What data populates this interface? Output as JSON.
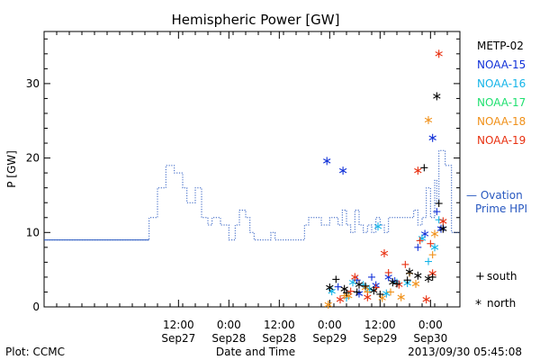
{
  "chart_data": {
    "type": "scatter",
    "title": "Hemispheric Power [GW]",
    "ylabel": "P [GW]",
    "xlabel": "Date and Time",
    "ylim": [
      0,
      37
    ],
    "yticks": [
      0,
      10,
      20,
      30
    ],
    "xlim": [
      "2013-09-26 04:00",
      "2013-09-30 07:00"
    ],
    "xticks": [
      {
        "t": "2013-09-27 12:00",
        "l1": "12:00",
        "l2": "Sep27"
      },
      {
        "t": "2013-09-28 00:00",
        "l1": "0:00",
        "l2": "Sep28"
      },
      {
        "t": "2013-09-28 12:00",
        "l1": "12:00",
        "l2": "Sep28"
      },
      {
        "t": "2013-09-29 00:00",
        "l1": "0:00",
        "l2": "Sep29"
      },
      {
        "t": "2013-09-29 12:00",
        "l1": "12:00",
        "l2": "Sep29"
      },
      {
        "t": "2013-09-30 00:00",
        "l1": "0:00",
        "l2": "Sep30"
      }
    ],
    "grid": false,
    "legend_position": "right",
    "satellites": [
      {
        "name": "METP-02",
        "color": "#000000"
      },
      {
        "name": "NOAA-15",
        "color": "#1030d8"
      },
      {
        "name": "NOAA-16",
        "color": "#14b4e8"
      },
      {
        "name": "NOAA-17",
        "color": "#20e070"
      },
      {
        "name": "NOAA-18",
        "color": "#f09018"
      },
      {
        "name": "NOAA-19",
        "color": "#e83010"
      }
    ],
    "ovation": {
      "name_line1": "— Ovation",
      "name_line2": "Prime HPI",
      "color": "#2858c0",
      "points": [
        [
          "2013-09-26 04:00",
          9
        ],
        [
          "2013-09-27 05:00",
          12
        ],
        [
          "2013-09-27 07:00",
          16
        ],
        [
          "2013-09-27 09:00",
          19
        ],
        [
          "2013-09-27 11:00",
          18
        ],
        [
          "2013-09-27 13:00",
          16
        ],
        [
          "2013-09-27 14:00",
          14
        ],
        [
          "2013-09-27 16:00",
          16
        ],
        [
          "2013-09-27 17:30",
          12
        ],
        [
          "2013-09-27 19:00",
          11
        ],
        [
          "2013-09-27 20:00",
          12
        ],
        [
          "2013-09-27 22:00",
          11
        ],
        [
          "2013-09-28 00:00",
          9
        ],
        [
          "2013-09-28 01:30",
          11
        ],
        [
          "2013-09-28 02:30",
          13
        ],
        [
          "2013-09-28 04:00",
          12
        ],
        [
          "2013-09-28 05:00",
          10
        ],
        [
          "2013-09-28 06:00",
          9
        ],
        [
          "2013-09-28 10:00",
          10
        ],
        [
          "2013-09-28 11:00",
          9
        ],
        [
          "2013-09-28 18:00",
          11
        ],
        [
          "2013-09-28 19:00",
          12
        ],
        [
          "2013-09-28 22:00",
          11
        ],
        [
          "2013-09-29 00:00",
          12
        ],
        [
          "2013-09-29 02:00",
          11
        ],
        [
          "2013-09-29 03:00",
          13
        ],
        [
          "2013-09-29 04:00",
          11
        ],
        [
          "2013-09-29 05:00",
          10
        ],
        [
          "2013-09-29 06:00",
          13
        ],
        [
          "2013-09-29 07:00",
          11
        ],
        [
          "2013-09-29 08:00",
          10
        ],
        [
          "2013-09-29 09:00",
          11
        ],
        [
          "2013-09-29 10:00",
          10
        ],
        [
          "2013-09-29 11:00",
          12
        ],
        [
          "2013-09-29 12:00",
          11
        ],
        [
          "2013-09-29 13:00",
          10
        ],
        [
          "2013-09-29 14:00",
          12
        ],
        [
          "2013-09-29 20:00",
          13
        ],
        [
          "2013-09-29 21:00",
          11
        ],
        [
          "2013-09-29 22:00",
          12
        ],
        [
          "2013-09-29 23:00",
          16
        ],
        [
          "2013-09-30 00:00",
          12
        ],
        [
          "2013-09-30 01:00",
          17
        ],
        [
          "2013-09-30 01:30",
          14
        ],
        [
          "2013-09-30 02:00",
          21
        ],
        [
          "2013-09-30 03:30",
          19
        ],
        [
          "2013-09-30 05:00",
          10
        ]
      ]
    },
    "series": [
      {
        "name": "NOAA-15",
        "north": [
          [
            "2013-09-28 23:20",
            19.6
          ],
          [
            "2013-09-29 03:10",
            18.3
          ],
          [
            "2013-09-30 00:30",
            22.7
          ],
          [
            "2013-09-29 22:40",
            9.8
          ],
          [
            "2013-09-29 14:00",
            4.0
          ],
          [
            "2013-09-29 07:00",
            1.8
          ],
          [
            "2013-09-29 11:00",
            2.9
          ],
          [
            "2013-09-30 02:30",
            10.5
          ]
        ],
        "south": [
          [
            "2013-09-29 02:00",
            2.7
          ],
          [
            "2013-09-29 06:30",
            3.6
          ],
          [
            "2013-09-29 10:00",
            4.0
          ],
          [
            "2013-09-29 15:30",
            3.5
          ],
          [
            "2013-09-29 21:00",
            8.0
          ],
          [
            "2013-09-30 01:30",
            12.8
          ]
        ]
      },
      {
        "name": "NOAA-16",
        "north": [
          [
            "2013-09-29 00:30",
            2.1
          ],
          [
            "2013-09-29 05:30",
            3.3
          ],
          [
            "2013-09-29 09:30",
            2.4
          ],
          [
            "2013-09-29 13:30",
            1.8
          ],
          [
            "2013-09-29 18:30",
            3.2
          ],
          [
            "2013-09-29 22:00",
            9.2
          ],
          [
            "2013-09-30 01:00",
            8.0
          ],
          [
            "2013-09-29 11:30",
            10.8
          ]
        ],
        "south": [
          [
            "2013-09-29 04:00",
            1.2
          ],
          [
            "2013-09-29 08:00",
            3.0
          ],
          [
            "2013-09-29 16:00",
            3.3
          ],
          [
            "2013-09-29 23:30",
            6.1
          ],
          [
            "2013-09-30 02:00",
            11.7
          ]
        ]
      },
      {
        "name": "NOAA-18",
        "north": [
          [
            "2013-09-28 23:40",
            0.3
          ],
          [
            "2013-09-29 04:30",
            1.5
          ],
          [
            "2013-09-29 08:30",
            2.6
          ],
          [
            "2013-09-29 12:30",
            1.2
          ],
          [
            "2013-09-29 17:00",
            1.3
          ],
          [
            "2013-09-29 23:30",
            25.1
          ],
          [
            "2013-09-30 01:00",
            9.8
          ],
          [
            "2013-09-29 20:30",
            3.1
          ]
        ],
        "south": [
          [
            "2013-09-29 03:30",
            1.5
          ],
          [
            "2013-09-29 09:00",
            2.0
          ],
          [
            "2013-09-29 14:30",
            2.0
          ],
          [
            "2013-09-29 19:00",
            4.5
          ],
          [
            "2013-09-30 00:30",
            7.0
          ]
        ]
      },
      {
        "name": "NOAA-19",
        "north": [
          [
            "2013-09-29 02:30",
            1.0
          ],
          [
            "2013-09-29 06:00",
            4.0
          ],
          [
            "2013-09-29 09:00",
            1.3
          ],
          [
            "2013-09-29 13:00",
            7.2
          ],
          [
            "2013-09-29 16:30",
            3.0
          ],
          [
            "2013-09-29 21:00",
            18.3
          ],
          [
            "2013-09-30 02:00",
            34.0
          ],
          [
            "2013-09-30 00:30",
            4.5
          ],
          [
            "2013-09-29 23:00",
            1.0
          ],
          [
            "2013-09-30 03:00",
            11.5
          ]
        ],
        "south": [
          [
            "2013-09-29 05:00",
            2.1
          ],
          [
            "2013-09-29 11:00",
            2.6
          ],
          [
            "2013-09-29 14:00",
            4.6
          ],
          [
            "2013-09-29 18:00",
            5.7
          ],
          [
            "2013-09-29 21:30",
            8.9
          ],
          [
            "2013-09-30 00:00",
            8.5
          ]
        ]
      },
      {
        "name": "METP-02",
        "north": [
          [
            "2013-09-29 00:00",
            2.6
          ],
          [
            "2013-09-29 03:30",
            2.4
          ],
          [
            "2013-09-29 07:00",
            3.0
          ],
          [
            "2013-09-29 10:30",
            2.2
          ],
          [
            "2013-09-29 15:00",
            3.3
          ],
          [
            "2013-09-29 19:00",
            4.7
          ],
          [
            "2013-09-29 23:30",
            3.8
          ],
          [
            "2013-09-30 01:30",
            28.3
          ],
          [
            "2013-09-30 03:00",
            10.5
          ],
          [
            "2013-09-29 21:00",
            4.2
          ]
        ],
        "south": [
          [
            "2013-09-29 01:30",
            3.7
          ],
          [
            "2013-09-29 04:00",
            1.9
          ],
          [
            "2013-09-29 06:30",
            2.0
          ],
          [
            "2013-09-29 08:30",
            2.8
          ],
          [
            "2013-09-29 12:00",
            1.7
          ],
          [
            "2013-09-29 16:00",
            3.1
          ],
          [
            "2013-09-29 18:30",
            3.6
          ],
          [
            "2013-09-29 22:30",
            18.7
          ],
          [
            "2013-09-30 00:30",
            4.0
          ],
          [
            "2013-09-30 02:00",
            13.9
          ]
        ]
      }
    ]
  },
  "marker_legend": {
    "south_glyph": "+",
    "south_label": "south",
    "north_glyph": "*",
    "north_label": "north"
  },
  "footer": {
    "plot_source": "Plot: CCMC",
    "timestamp": "2013/09/30 05:45:08"
  }
}
